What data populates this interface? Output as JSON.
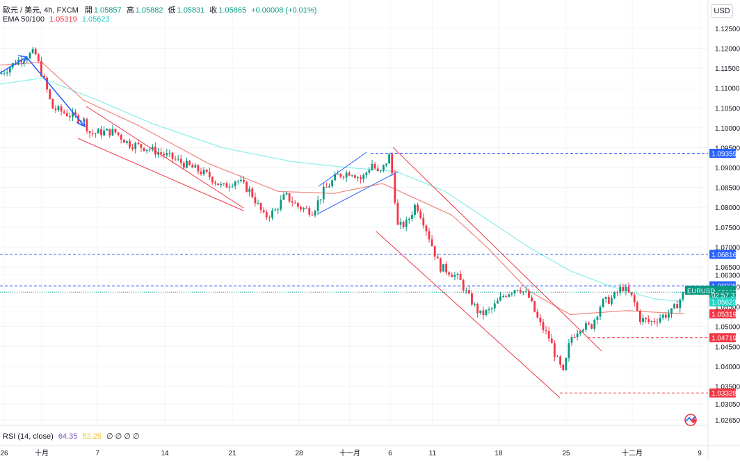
{
  "header": {
    "symbol_line": "歐元 / 美元, 4h, FXCM",
    "open_label": "開",
    "open_value": "1.05857",
    "high_label": "高",
    "high_value": "1.05882",
    "low_label": "低",
    "low_value": "1.05831",
    "close_label": "收",
    "close_value": "1.05865",
    "change": "+0.00008 (+0.01%)",
    "ema_label": "EMA 50/100",
    "ema50_value": "1.05319",
    "ema100_value": "1.05623"
  },
  "currency_button": "USD",
  "rsi_legend": {
    "label": "RSI (14, close)",
    "value1": "64.35",
    "value2": "52.25",
    "extra": "∅ ∅ ∅ ∅"
  },
  "colors": {
    "up": "#089981",
    "down": "#f23645",
    "ema50": "#f28c85",
    "ema100": "#8ff0ea",
    "channel": "#f23645",
    "arrow": "#2962ff",
    "dashed_blue": "#2962ff"
  },
  "price_axis": {
    "ticks": [
      "1.12500",
      "1.12000",
      "1.11500",
      "1.11000",
      "1.10500",
      "1.10000",
      "1.09500",
      "1.09000",
      "1.08500",
      "1.08000",
      "1.07500",
      "1.07000",
      "1.06500",
      "1.06300",
      "1.06000",
      "1.05500",
      "1.05000",
      "1.04500",
      "1.04000",
      "1.03500",
      "1.03050",
      "1.02650"
    ],
    "tags": [
      {
        "text": "1.09359",
        "price": 1.09359,
        "color": "#2962ff"
      },
      {
        "text": "1.06816",
        "price": 1.06816,
        "color": "#2962ff"
      },
      {
        "text": "1.06025",
        "price": 1.06025,
        "color": "#2962ff"
      },
      {
        "text": "EURUSD",
        "price": 1.05915,
        "color": "#089981"
      },
      {
        "text": "1.05865",
        "price": 1.05865,
        "color": "#089981"
      },
      {
        "text": "02:57:31",
        "price": 1.05795,
        "color": "#089981"
      },
      {
        "text": "1.05623",
        "price": 1.05623,
        "color": "#22d3c5"
      },
      {
        "text": "1.05319",
        "price": 1.05319,
        "color": "#f23645"
      },
      {
        "text": "1.04719",
        "price": 1.04719,
        "color": "#f23645"
      },
      {
        "text": "1.03328",
        "price": 1.03328,
        "color": "#f23645"
      }
    ]
  },
  "time_axis": [
    "26",
    "十月",
    "7",
    "14",
    "21",
    "28",
    "十一月",
    "6",
    "11",
    "18",
    "25",
    "十二月",
    "9"
  ],
  "chart_data": {
    "type": "candlestick",
    "symbol": "歐元 / 美元",
    "timeframe": "4h",
    "x_labels": [
      "26",
      "十月",
      "7",
      "14",
      "21",
      "28",
      "十一月",
      "6",
      "11",
      "18",
      "25",
      "十二月",
      "9"
    ],
    "ylim": [
      1.0245,
      1.13
    ],
    "horizontal_levels": [
      {
        "price": 1.09359,
        "style": "dashed",
        "color": "blue"
      },
      {
        "price": 1.06816,
        "style": "dashed",
        "color": "blue"
      },
      {
        "price": 1.06025,
        "style": "dashed",
        "color": "blue"
      },
      {
        "price": 1.04719,
        "style": "dashed",
        "color": "red"
      },
      {
        "price": 1.03328,
        "style": "dashed",
        "color": "red"
      }
    ],
    "price_path": [
      [
        0,
        1.1135
      ],
      [
        30,
        1.1175
      ],
      [
        50,
        1.119
      ],
      [
        65,
        1.111
      ],
      [
        75,
        1.105
      ],
      [
        90,
        1.104
      ],
      [
        110,
        1.1025
      ],
      [
        120,
        1.102
      ],
      [
        130,
        1.0985
      ],
      [
        150,
        1.099
      ],
      [
        165,
        1.099
      ],
      [
        185,
        1.096
      ],
      [
        210,
        1.095
      ],
      [
        240,
        1.093
      ],
      [
        270,
        1.0905
      ],
      [
        300,
        1.088
      ],
      [
        320,
        1.085
      ],
      [
        340,
        1.087
      ],
      [
        360,
        1.084
      ],
      [
        380,
        1.0775
      ],
      [
        395,
        1.079
      ],
      [
        410,
        1.083
      ],
      [
        430,
        1.08
      ],
      [
        450,
        1.079
      ],
      [
        465,
        1.084
      ],
      [
        485,
        1.088
      ],
      [
        505,
        1.089
      ],
      [
        520,
        1.087
      ],
      [
        535,
        1.091
      ],
      [
        545,
        1.088
      ],
      [
        560,
        1.093
      ],
      [
        565,
        1.087
      ],
      [
        572,
        1.075
      ],
      [
        585,
        1.076
      ],
      [
        598,
        1.081
      ],
      [
        610,
        1.076
      ],
      [
        620,
        1.071
      ],
      [
        632,
        1.065
      ],
      [
        645,
        1.064
      ],
      [
        660,
        1.062
      ],
      [
        672,
        1.058
      ],
      [
        690,
        1.053
      ],
      [
        705,
        1.054
      ],
      [
        725,
        1.058
      ],
      [
        745,
        1.06
      ],
      [
        760,
        1.0575
      ],
      [
        775,
        1.051
      ],
      [
        790,
        1.047
      ],
      [
        800,
        1.042
      ],
      [
        810,
        1.038
      ],
      [
        820,
        1.047
      ],
      [
        835,
        1.05
      ],
      [
        850,
        1.05
      ],
      [
        865,
        1.056
      ],
      [
        880,
        1.057
      ],
      [
        895,
        1.06
      ],
      [
        910,
        1.057
      ],
      [
        920,
        1.052
      ],
      [
        935,
        1.051
      ],
      [
        950,
        1.0525
      ],
      [
        965,
        1.0535
      ],
      [
        975,
        1.056
      ],
      [
        983,
        1.0585
      ]
    ],
    "ema50_path": [
      [
        0,
        1.1158
      ],
      [
        60,
        1.1165
      ],
      [
        120,
        1.107
      ],
      [
        200,
        1.1005
      ],
      [
        300,
        1.091
      ],
      [
        400,
        1.084
      ],
      [
        480,
        1.0835
      ],
      [
        550,
        1.086
      ],
      [
        600,
        1.082
      ],
      [
        650,
        1.078
      ],
      [
        700,
        1.07
      ],
      [
        760,
        1.059
      ],
      [
        820,
        1.053
      ],
      [
        900,
        1.054
      ],
      [
        985,
        1.0532
      ]
    ],
    "ema100_path": [
      [
        0,
        1.111
      ],
      [
        60,
        1.1125
      ],
      [
        140,
        1.107
      ],
      [
        220,
        1.101
      ],
      [
        320,
        1.095
      ],
      [
        420,
        1.0915
      ],
      [
        500,
        1.09
      ],
      [
        570,
        1.089
      ],
      [
        640,
        1.084
      ],
      [
        700,
        1.077
      ],
      [
        760,
        1.07
      ],
      [
        820,
        1.064
      ],
      [
        880,
        1.06
      ],
      [
        940,
        1.057
      ],
      [
        985,
        1.0562
      ]
    ]
  }
}
